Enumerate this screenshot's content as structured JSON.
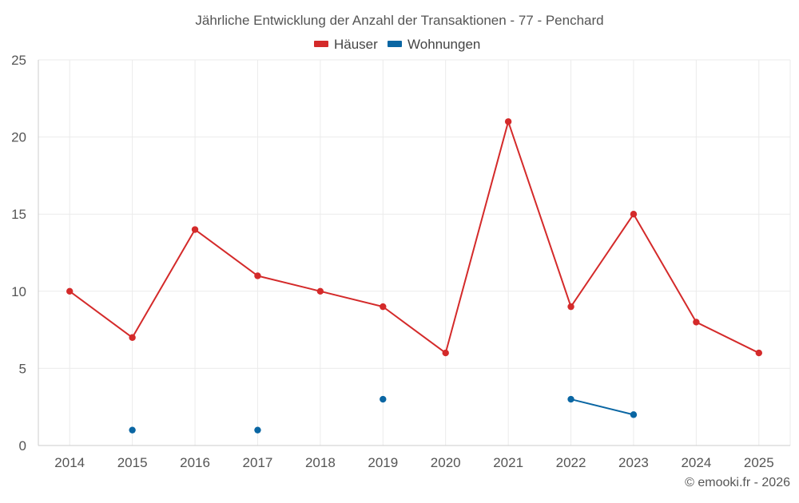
{
  "chart_data": {
    "type": "line",
    "title": "Jährliche Entwicklung der Anzahl der Transaktionen - 77 - Penchard",
    "categories": [
      "2014",
      "2015",
      "2016",
      "2017",
      "2018",
      "2019",
      "2020",
      "2021",
      "2022",
      "2023",
      "2024",
      "2025"
    ],
    "series": [
      {
        "name": "Häuser",
        "color": "#d42a2a",
        "values": [
          10,
          7,
          14,
          11,
          10,
          9,
          6,
          21,
          9,
          15,
          8,
          6
        ]
      },
      {
        "name": "Wohnungen",
        "color": "#0a66a3",
        "values": [
          null,
          1,
          null,
          1,
          null,
          3,
          null,
          null,
          3,
          2,
          null,
          null
        ]
      }
    ],
    "xlabel": "",
    "ylabel": "",
    "ylim": [
      0,
      25
    ],
    "yticks": [
      0,
      5,
      10,
      15,
      20,
      25
    ],
    "grid": true,
    "legend": "top-center"
  },
  "credit": "© emooki.fr - 2026"
}
